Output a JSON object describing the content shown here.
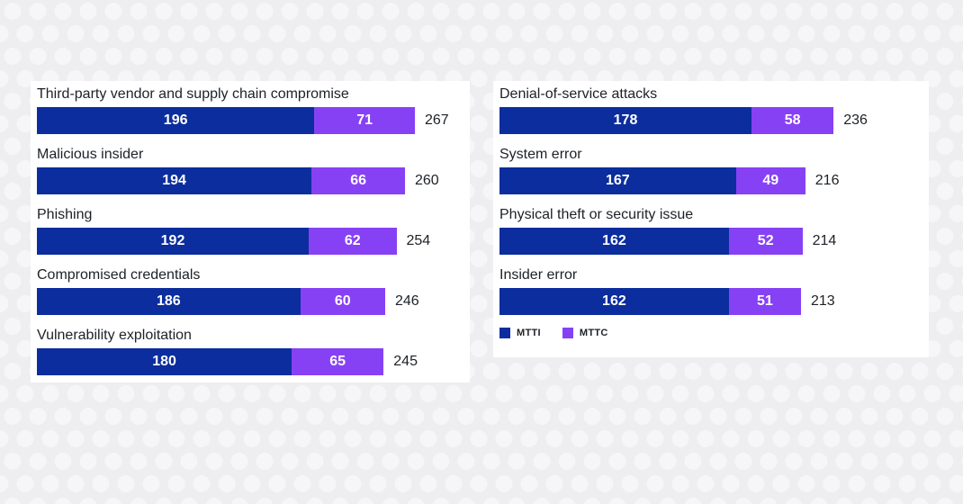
{
  "page": {
    "background_base_color": "#eeeef0",
    "background_dot_color": "#f6f6f8",
    "card_background_color": "#ffffff"
  },
  "colors": {
    "mtti": "#0c2d9e",
    "mttc": "#8741f5",
    "label_text": "#1d2126",
    "bar_value_text": "#ffffff"
  },
  "legend": {
    "position": "bottom-of-right-panel",
    "items": [
      {
        "label": "MTTI",
        "color_key": "mtti"
      },
      {
        "label": "MTTC",
        "color_key": "mttc"
      }
    ]
  },
  "chart_data": [
    {
      "type": "bar",
      "orientation": "horizontal",
      "stacked": true,
      "panel": "left",
      "axis": "none",
      "grid": false,
      "value_labels": "inside-segments",
      "totals_shown": true,
      "series_names": [
        "MTTI",
        "MTTC"
      ],
      "rows": [
        {
          "category": "Third-party vendor and supply chain compromise",
          "mtti": 196,
          "mttc": 71,
          "total": 267
        },
        {
          "category": "Malicious insider",
          "mtti": 194,
          "mttc": 66,
          "total": 260
        },
        {
          "category": "Phishing",
          "mtti": 192,
          "mttc": 62,
          "total": 254
        },
        {
          "category": "Compromised credentials",
          "mtti": 186,
          "mttc": 60,
          "total": 246
        },
        {
          "category": "Vulnerability exploitation",
          "mtti": 180,
          "mttc": 65,
          "total": 245
        }
      ]
    },
    {
      "type": "bar",
      "orientation": "horizontal",
      "stacked": true,
      "panel": "right",
      "axis": "none",
      "grid": false,
      "value_labels": "inside-segments",
      "totals_shown": true,
      "series_names": [
        "MTTI",
        "MTTC"
      ],
      "rows": [
        {
          "category": "Denial-of-service attacks",
          "mtti": 178,
          "mttc": 58,
          "total": 236
        },
        {
          "category": "System error",
          "mtti": 167,
          "mttc": 49,
          "total": 216
        },
        {
          "category": "Physical theft or security issue",
          "mtti": 162,
          "mttc": 52,
          "total": 214
        },
        {
          "category": "Insider error",
          "mtti": 162,
          "mttc": 51,
          "total": 213
        }
      ]
    }
  ]
}
